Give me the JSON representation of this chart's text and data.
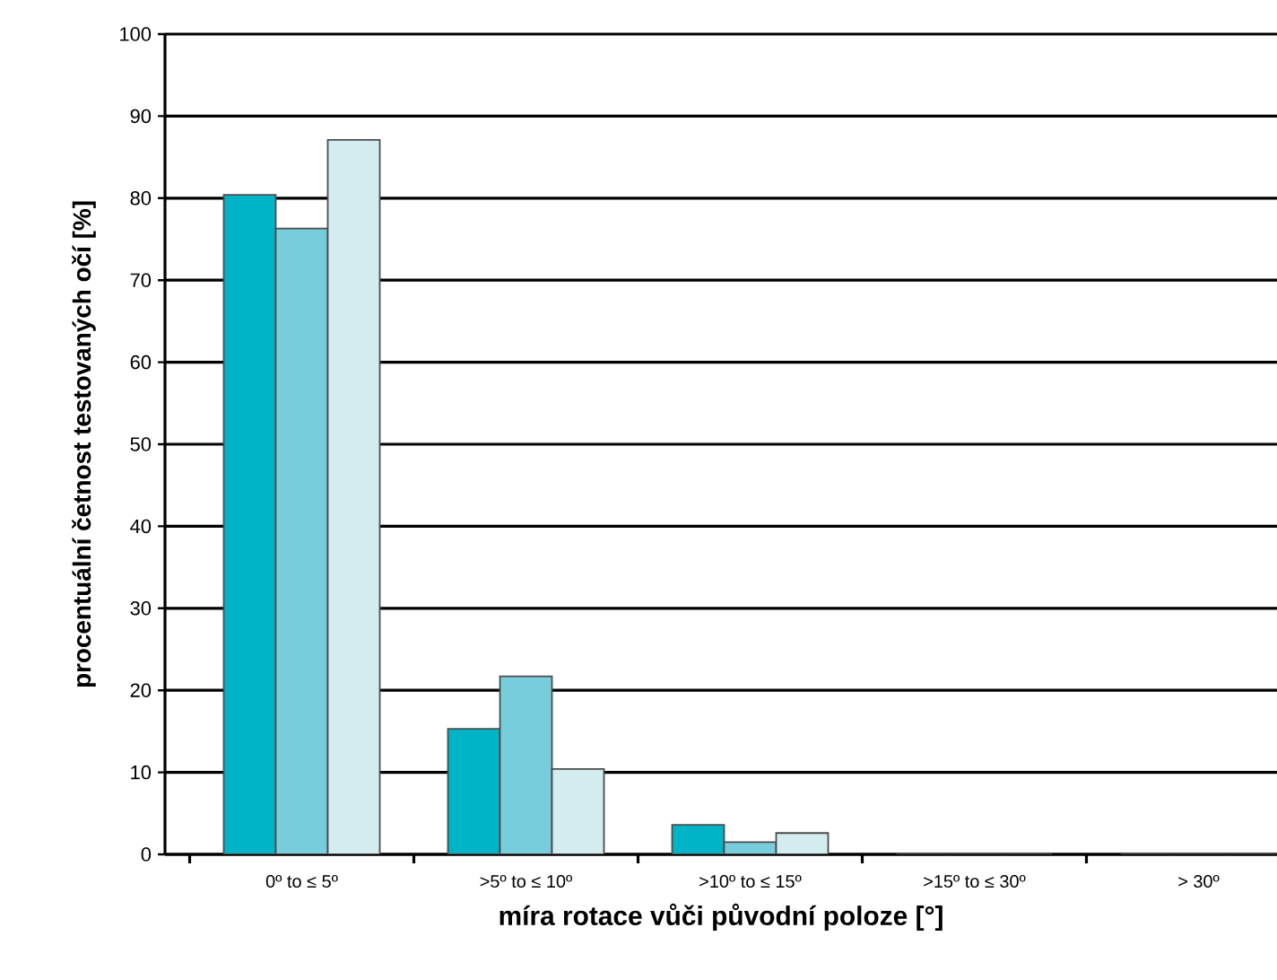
{
  "chart_data": {
    "type": "bar",
    "xlabel": "míra rotace vůči původní poloze [°]",
    "ylabel": "procentuální četnost testovaných očí [%]",
    "categories": [
      "0º to ≤ 5º",
      ">5º to ≤ 10º",
      ">10º to ≤ 15º",
      ">15º to ≤ 30º",
      "> 30º"
    ],
    "series": [
      {
        "color": "#00b4c8",
        "values": [
          80.4,
          15.3,
          3.6,
          0,
          0
        ]
      },
      {
        "color": "#78cddc",
        "values": [
          76.3,
          21.7,
          1.5,
          0,
          0
        ]
      },
      {
        "color": "#d2ecf0",
        "values": [
          87.1,
          10.4,
          2.6,
          0,
          0
        ]
      }
    ],
    "ylim": [
      0,
      100
    ],
    "yticks": [
      0,
      10,
      20,
      30,
      40,
      50,
      60,
      70,
      80,
      90,
      100
    ],
    "grid": "y"
  }
}
